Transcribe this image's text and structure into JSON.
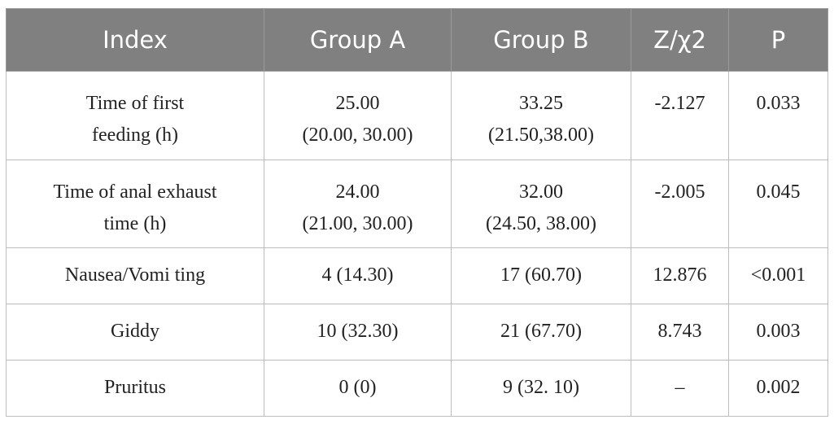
{
  "table": {
    "header": [
      "Index",
      "Group A",
      "Group B",
      "Z/χ2",
      "P"
    ],
    "rows": [
      [
        [
          "Time of first",
          "feeding (h)"
        ],
        [
          "25.00",
          "(20.00, 30.00)"
        ],
        [
          "33.25",
          "(21.50,38.00)"
        ],
        "-2.127",
        "0.033"
      ],
      [
        [
          "Time of anal exhaust",
          "time (h)"
        ],
        [
          "24.00",
          "(21.00, 30.00)"
        ],
        [
          "32.00",
          "(24.50, 38.00)"
        ],
        "-2.005",
        "0.045"
      ],
      [
        "Nausea/Vomi ting",
        "4 (14.30)",
        "17 (60.70)",
        "12.876",
        "<0.001"
      ],
      [
        "Giddy",
        "10 (32.30)",
        "21 (67.70)",
        "8.743",
        "0.003"
      ],
      [
        "Pruritus",
        "0 (0)",
        "9 (32. 10)",
        "–",
        "0.002"
      ]
    ]
  }
}
